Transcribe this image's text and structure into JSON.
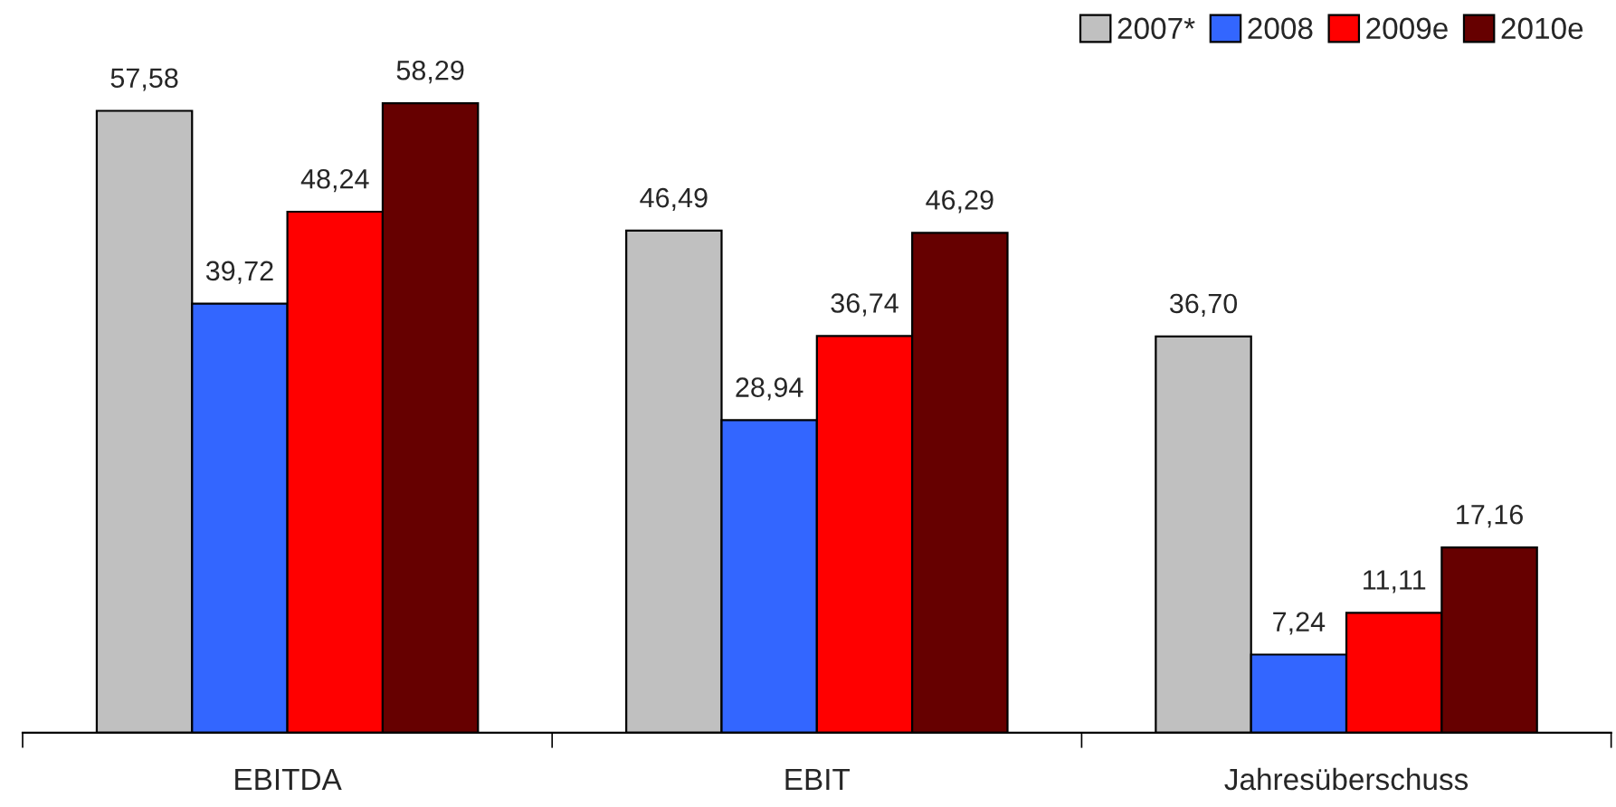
{
  "chart_data": {
    "type": "bar",
    "categories": [
      "EBITDA",
      "EBIT",
      "Jahresüberschuss"
    ],
    "series": [
      {
        "name": "2007*",
        "color": "#c0c0c0",
        "values": [
          57.58,
          46.49,
          36.7
        ],
        "value_labels": [
          "57,58",
          "46,49",
          "36,70"
        ]
      },
      {
        "name": "2008",
        "color": "#3366ff",
        "values": [
          39.72,
          28.94,
          7.24
        ],
        "value_labels": [
          "39,72",
          "28,94",
          "7,24"
        ]
      },
      {
        "name": "2009e",
        "color": "#ff0000",
        "values": [
          48.24,
          36.74,
          11.11
        ],
        "value_labels": [
          "48,24",
          "36,74",
          "11,11"
        ]
      },
      {
        "name": "2010e",
        "color": "#660000",
        "values": [
          58.29,
          46.29,
          17.16
        ],
        "value_labels": [
          "58,29",
          "46,29",
          "17,16"
        ]
      }
    ],
    "legend": "top right",
    "grid": false,
    "tick_labels": "x"
  }
}
